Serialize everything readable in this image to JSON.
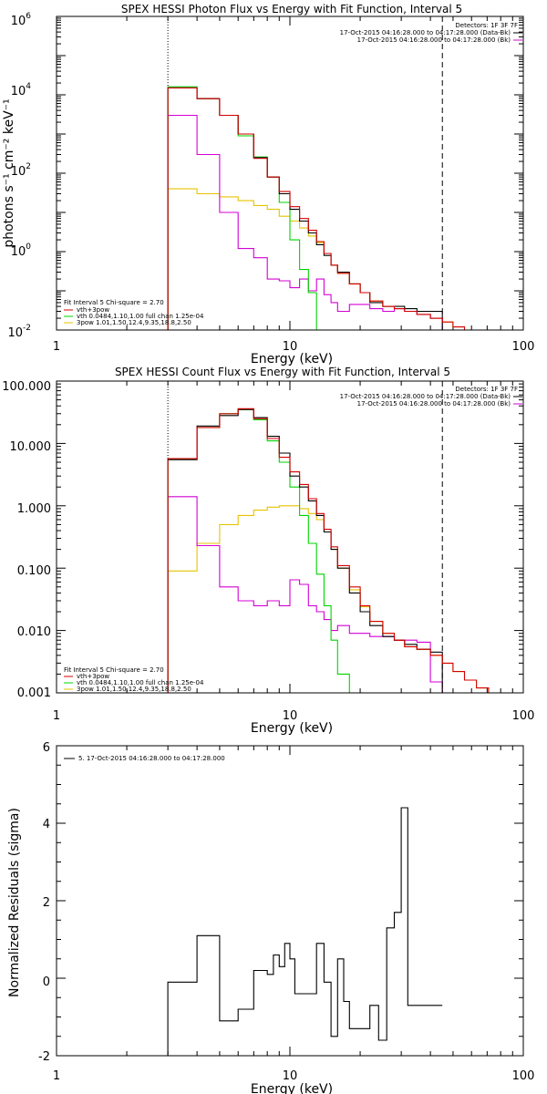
{
  "colors": {
    "data": "#000000",
    "total": "#d40000",
    "thermal": "#00d400",
    "powerlaw": "#e6c300",
    "background": "#d400d4"
  },
  "chart_data": [
    {
      "type": "line",
      "title": "SPEX HESSI Photon Flux vs Energy with Fit Function, Interval 5",
      "xlabel": "Energy (keV)",
      "ylabel": "photons s⁻¹ cm⁻² keV⁻¹",
      "xscale": "log",
      "yscale": "log",
      "xlim": [
        1,
        100
      ],
      "ylim": [
        0.01,
        1000000
      ],
      "xticks": [
        "1",
        "10",
        "100"
      ],
      "yticks": [
        {
          "base": "10",
          "exp": "-2"
        },
        {
          "base": "10",
          "exp": "0"
        },
        {
          "base": "10",
          "exp": "2"
        },
        {
          "base": "10",
          "exp": "4"
        },
        {
          "base": "10",
          "exp": "6"
        }
      ],
      "fit_range_keV": [
        3.0,
        45.0
      ],
      "legend_top_right": [
        "Detectors: 1F 3F 7F",
        "17-Oct-2015 04:16:28.000 to 04:17:28.000 (Data-Bk)",
        "17-Oct-2015 04:16:28.000 to 04:17:28.000 (Bk)"
      ],
      "legend_bottom_left": [
        "Fit Interval 5   Chi-square = 2.70",
        "vth+3pow",
        "vth 0.0484,1.10,1.00  full chan 1.25e-04",
        "3pow 1.01,1.50,12.4,9.35,18.8,2.50"
      ],
      "edges": [
        3.0,
        4.0,
        5.0,
        6.0,
        7.0,
        8.0,
        9.0,
        10.0,
        11.0,
        12.0,
        13.0,
        14.0,
        15.0,
        16.0,
        18.0,
        20.0,
        22.0,
        25.0,
        28.0,
        31.0,
        35.0,
        40.0,
        45.0,
        50.0,
        56.0,
        63.0
      ],
      "series": [
        {
          "name": "Data-Bk",
          "color_key": "data",
          "values": [
            15000,
            8000,
            3000,
            1000,
            250,
            80,
            30,
            12,
            6,
            3,
            1.5,
            0.8,
            0.45,
            0.3,
            0.15,
            0.09,
            0.05,
            0.04,
            0.04,
            0.035,
            0.03,
            0.03
          ]
        },
        {
          "name": "vth+3pow",
          "color_key": "total",
          "values": [
            15000,
            8000,
            3000,
            1000,
            240,
            80,
            34,
            14,
            7,
            3.5,
            1.8,
            0.9,
            0.45,
            0.28,
            0.15,
            0.09,
            0.055,
            0.04,
            0.035,
            0.03,
            0.025,
            0.02,
            0.016,
            0.012,
            0.01
          ]
        },
        {
          "name": "vth",
          "color_key": "thermal",
          "values": [
            16000,
            8000,
            3000,
            900,
            260,
            80,
            18,
            2,
            0.35,
            0.09,
            0.01
          ]
        },
        {
          "name": "3pow",
          "color_key": "powerlaw",
          "values": [
            40,
            30,
            25,
            20,
            15,
            12,
            8,
            6,
            4,
            2.5,
            1.7,
            0.9,
            0.45,
            0.28,
            0.15,
            0.09,
            0.055,
            0.04,
            0.035,
            0.03,
            0.025,
            0.02,
            0.016,
            0.012,
            0.01
          ]
        },
        {
          "name": "Bk",
          "color_key": "background",
          "values": [
            3000,
            300,
            10,
            1.2,
            0.7,
            0.2,
            0.18,
            0.12,
            0.2,
            0.1,
            0.2,
            0.08,
            0.05,
            0.03,
            0.045,
            0.045,
            0.035,
            0.03,
            0.035,
            0.03,
            0.025,
            0.02
          ]
        }
      ]
    },
    {
      "type": "line",
      "title": "SPEX HESSI Count Flux vs Energy with Fit Function, Interval 5",
      "xlabel": "Energy (keV)",
      "ylabel": "",
      "xscale": "log",
      "yscale": "log",
      "xlim": [
        1,
        100
      ],
      "ylim": [
        0.001,
        100
      ],
      "xticks": [
        "1",
        "10",
        "100"
      ],
      "yticks": [
        "0.001",
        "0.010",
        "0.100",
        "1.000",
        "10.000",
        "100.000"
      ],
      "fit_range_keV": [
        3.0,
        45.0
      ],
      "legend_top_right": [
        "Detectors: 1F 3F 7F",
        "17-Oct-2015 04:16:28.000 to 04:17:28.000 (Data-Bk)",
        "17-Oct-2015 04:16:28.000 to 04:17:28.000 (Bk)"
      ],
      "legend_bottom_left": [
        "Fit Interval 5   Chi-square = 2.70",
        "vth+3pow",
        "vth 0.0484,1.10,1.00  full chan 1.25e-04",
        "3pow 1.01,1.50,12.4,9.35,18.8,2.50"
      ],
      "edges": [
        3.0,
        4.0,
        5.0,
        6.0,
        7.0,
        8.0,
        9.0,
        10.0,
        11.0,
        12.0,
        13.0,
        14.0,
        15.0,
        16.0,
        18.0,
        20.0,
        22.0,
        25.0,
        28.0,
        31.0,
        35.0,
        40.0,
        45.0,
        50.0,
        56.0,
        63.0,
        71.0,
        80.0
      ],
      "series": [
        {
          "name": "Data-Bk",
          "color_key": "data",
          "values": [
            5.5,
            19,
            28,
            35,
            26,
            13,
            7,
            3,
            2,
            1.2,
            0.7,
            0.38,
            0.2,
            0.1,
            0.04,
            0.02,
            0.012,
            0.008,
            0.007,
            0.006,
            0.005,
            0.0045
          ]
        },
        {
          "name": "vth+3pow",
          "color_key": "total",
          "values": [
            5.7,
            18,
            30,
            36,
            25,
            12,
            6,
            3.5,
            2.2,
            1.3,
            0.75,
            0.42,
            0.22,
            0.11,
            0.05,
            0.025,
            0.014,
            0.009,
            0.007,
            0.0055,
            0.005,
            0.004,
            0.003,
            0.0022,
            0.0016,
            0.0012,
            0.0009
          ]
        },
        {
          "name": "vth",
          "color_key": "thermal",
          "values": [
            5.6,
            18,
            30,
            35,
            24,
            11,
            5,
            2,
            0.7,
            0.25,
            0.08,
            0.025,
            0.007,
            0.002,
            0.0005
          ]
        },
        {
          "name": "3pow",
          "color_key": "powerlaw",
          "values": [
            0.09,
            0.25,
            0.5,
            0.7,
            0.85,
            0.95,
            1.0,
            1.0,
            0.9,
            0.75,
            0.6,
            0.38,
            0.2,
            0.1,
            0.045,
            0.024,
            0.014,
            0.009,
            0.007,
            0.0055,
            0.005,
            0.004,
            0.003,
            0.0022,
            0.0016,
            0.0012,
            0.0009
          ]
        },
        {
          "name": "Bk",
          "color_key": "background",
          "values": [
            1.4,
            0.23,
            0.05,
            0.03,
            0.025,
            0.03,
            0.025,
            0.065,
            0.055,
            0.025,
            0.02,
            0.015,
            0.01,
            0.012,
            0.009,
            0.009,
            0.008,
            0.008,
            0.007,
            0.007,
            0.0065,
            0.0015
          ]
        }
      ]
    },
    {
      "type": "line",
      "title": "",
      "xlabel": "Energy (keV)",
      "ylabel": "Normalized Residuals (sigma)",
      "xscale": "log",
      "yscale": "linear",
      "xlim": [
        1,
        100
      ],
      "ylim": [
        -2,
        6
      ],
      "xticks": [
        "1",
        "10",
        "100"
      ],
      "yticks": [
        "-2",
        "0",
        "2",
        "4",
        "6"
      ],
      "legend": [
        "5. 17-Oct-2015 04:16:28.000 to 04:17:28.000"
      ],
      "edges": [
        3.0,
        3.5,
        4.0,
        4.5,
        5.0,
        5.5,
        6.0,
        6.5,
        7.0,
        7.5,
        8.0,
        8.5,
        9.0,
        9.5,
        10.0,
        10.5,
        11.0,
        12.0,
        13.0,
        14.0,
        15.0,
        16.0,
        17.0,
        18.0,
        20.0,
        22.0,
        24.0,
        26.0,
        28.0,
        30.0,
        32.0,
        35.0,
        38.0,
        42.0,
        45.0
      ],
      "series": [
        {
          "name": "5. 17-Oct-2015 04:16:28.000 to 04:17:28.000",
          "color_key": "data",
          "values": [
            -0.1,
            -0.1,
            1.1,
            1.1,
            -1.1,
            -1.1,
            -0.8,
            -0.8,
            0.2,
            0.2,
            0.1,
            0.6,
            0.3,
            0.9,
            0.5,
            -0.4,
            -0.4,
            -0.4,
            0.9,
            -0.1,
            -1.5,
            0.5,
            -0.6,
            -1.3,
            -1.3,
            -0.7,
            -1.6,
            1.3,
            1.7,
            4.4,
            -0.7,
            -0.7,
            -0.7,
            -0.7
          ]
        }
      ]
    }
  ]
}
